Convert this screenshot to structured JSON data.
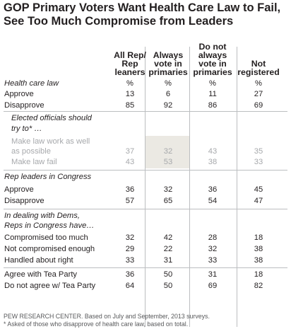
{
  "title": "GOP Primary Voters Want Health Care Law to Fail, See Too Much Compromise from Leaders",
  "columns": [
    "All Rep/ Rep leaners",
    "Always vote in primaries",
    "Do not always vote in primaries",
    "Not registered"
  ],
  "columns_lines": [
    [
      "All Rep/",
      "Rep",
      "leaners"
    ],
    [
      "Always",
      "vote in",
      "primaries"
    ],
    [
      "Do not",
      "always",
      "vote in",
      "primaries"
    ],
    [
      "Not",
      "registered"
    ]
  ],
  "rows": [
    {
      "label": "Health care law",
      "kind": "section",
      "values": [
        "%",
        "%",
        "%",
        "%"
      ]
    },
    {
      "label": "Approve",
      "kind": "data",
      "values": [
        "13",
        "6",
        "11",
        "27"
      ]
    },
    {
      "label": "Disapprove",
      "kind": "data",
      "values": [
        "85",
        "92",
        "86",
        "69"
      ]
    },
    {
      "label": "Elected officials should",
      "kind": "sub",
      "values": []
    },
    {
      "label": "try to* …",
      "kind": "sub",
      "values": []
    },
    {
      "label": "Make law work as well",
      "kind": "subrow",
      "values": []
    },
    {
      "label": "as possible",
      "kind": "subrow",
      "values": [
        "37",
        "32",
        "43",
        "35"
      ]
    },
    {
      "label": "Make law fail",
      "kind": "subrow",
      "values": [
        "43",
        "53",
        "38",
        "33"
      ]
    },
    {
      "label": "Rep leaders in Congress",
      "kind": "section",
      "values": []
    },
    {
      "label": "Approve",
      "kind": "data",
      "values": [
        "36",
        "32",
        "36",
        "45"
      ]
    },
    {
      "label": "Disapprove",
      "kind": "data",
      "values": [
        "57",
        "65",
        "54",
        "47"
      ]
    },
    {
      "label": "In dealing with Dems,",
      "kind": "section",
      "values": []
    },
    {
      "label": "Reps in Congress have…",
      "kind": "section",
      "values": []
    },
    {
      "label": "Compromised too much",
      "kind": "data",
      "values": [
        "32",
        "42",
        "28",
        "18"
      ]
    },
    {
      "label": "Not compromised enough",
      "kind": "data",
      "values": [
        "29",
        "22",
        "32",
        "38"
      ]
    },
    {
      "label": "Handled about right",
      "kind": "data",
      "values": [
        "33",
        "31",
        "33",
        "38"
      ]
    },
    {
      "label": "Agree with Tea Party",
      "kind": "data",
      "values": [
        "36",
        "50",
        "31",
        "18"
      ]
    },
    {
      "label": "Do not agree w/ Tea Party",
      "kind": "data",
      "values": [
        "64",
        "50",
        "69",
        "82"
      ]
    }
  ],
  "source": "PEW RESEARCH CENTER. Based on July and September, 2013 surveys.",
  "footnote": "* Asked of those who disapprove of health care law, based on total.",
  "colors": {
    "text": "#231f20",
    "muted": "#a7a9ac",
    "highlight": "#ebe9e3",
    "rule": "#bcbec0"
  },
  "chart_data": {
    "type": "table",
    "title": "GOP Primary Voters Want Health Care Law to Fail, See Too Much Compromise from Leaders",
    "columns": [
      "All Rep/ Rep leaners",
      "Always vote in primaries",
      "Do not always vote in primaries",
      "Not registered"
    ],
    "rows": [
      {
        "group": "Health care law",
        "label": "Approve",
        "values": [
          13,
          6,
          11,
          27
        ]
      },
      {
        "group": "Health care law",
        "label": "Disapprove",
        "values": [
          85,
          92,
          86,
          69
        ]
      },
      {
        "group": "Elected officials should try to* …",
        "label": "Make law work as well as possible",
        "values": [
          37,
          32,
          43,
          35
        ]
      },
      {
        "group": "Elected officials should try to* …",
        "label": "Make law fail",
        "values": [
          43,
          53,
          38,
          33
        ]
      },
      {
        "group": "Rep leaders in Congress",
        "label": "Approve",
        "values": [
          36,
          32,
          36,
          45
        ]
      },
      {
        "group": "Rep leaders in Congress",
        "label": "Disapprove",
        "values": [
          57,
          65,
          54,
          47
        ]
      },
      {
        "group": "In dealing with Dems, Reps in Congress have…",
        "label": "Compromised too much",
        "values": [
          32,
          42,
          28,
          18
        ]
      },
      {
        "group": "In dealing with Dems, Reps in Congress have…",
        "label": "Not compromised enough",
        "values": [
          29,
          22,
          32,
          38
        ]
      },
      {
        "group": "In dealing with Dems, Reps in Congress have…",
        "label": "Handled about right",
        "values": [
          33,
          31,
          33,
          38
        ]
      },
      {
        "group": "",
        "label": "Agree with Tea Party",
        "values": [
          36,
          50,
          31,
          18
        ]
      },
      {
        "group": "",
        "label": "Do not agree w/ Tea Party",
        "values": [
          64,
          50,
          69,
          82
        ]
      }
    ],
    "highlight_column": "Always vote in primaries"
  }
}
